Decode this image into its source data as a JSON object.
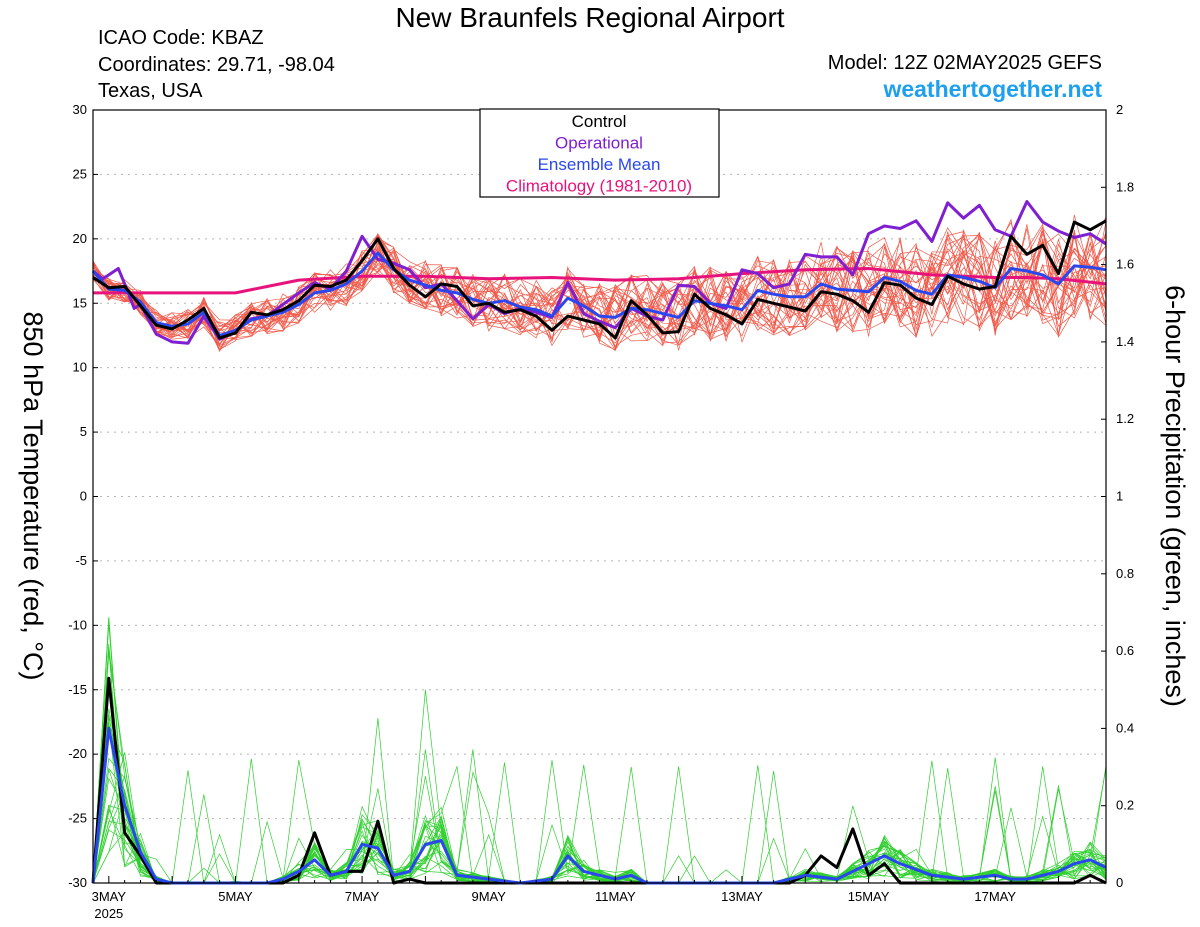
{
  "header": {
    "title": "New Braunfels Regional Airport",
    "icao": "ICAO Code: KBAZ",
    "coordinates": "Coordinates: 29.71, -98.04",
    "region": "Texas, USA",
    "model": "Model: 12Z 02MAY2025 GEFS",
    "site": "weathertogether.net"
  },
  "chart_data": {
    "type": "line",
    "y_left": {
      "label": "850 hPa Temperature (red, °C)",
      "range": [
        -30,
        30
      ],
      "ticks": [
        "-30",
        "-25",
        "-20",
        "-15",
        "-10",
        "-5",
        "0",
        "5",
        "10",
        "15",
        "20",
        "25",
        "30"
      ]
    },
    "y_right": {
      "label": "6-hour Precipitation (green, inches)",
      "range": [
        0,
        2
      ],
      "ticks": [
        "0",
        "0.2",
        "0.4",
        "0.6",
        "0.8",
        "1",
        "1.2",
        "1.4",
        "1.6",
        "1.8",
        "2"
      ]
    },
    "x": {
      "range_days": [
        2.75,
        18.75
      ],
      "tick_labels": [
        "3MAY",
        "5MAY",
        "7MAY",
        "9MAY",
        "11MAY",
        "13MAY",
        "15MAY",
        "17MAY"
      ],
      "tick_days": [
        3,
        5,
        7,
        9,
        11,
        13,
        15,
        17
      ],
      "year_label": "2025"
    },
    "grid": true,
    "legend": {
      "placement": "top-center",
      "entries": [
        {
          "name": "Control",
          "color": "#000000"
        },
        {
          "name": "Operational",
          "color": "#7f1fd0"
        },
        {
          "name": "Ensemble Mean",
          "color": "#2a47ee"
        },
        {
          "name": "Climatology (1981-2010)",
          "color": "#e8137a"
        }
      ]
    },
    "colors": {
      "members_temp": "#f05a4a",
      "members_precip": "#2fcf2f",
      "control": "#000000",
      "operational": "#7f1fd0",
      "ensemble_mean": "#2a47ee",
      "climatology": "#e8137a"
    },
    "series": [
      {
        "name": "Climatology (1981-2010)",
        "axis": "left",
        "x": [
          2.75,
          4.25,
          4.5,
          5,
          5.5,
          6,
          7,
          8,
          9,
          10,
          11,
          12,
          13,
          14,
          15,
          16,
          17,
          17.5,
          18,
          18.75
        ],
        "values": [
          15.8,
          15.8,
          15.8,
          15.8,
          16.3,
          16.8,
          17.1,
          17.1,
          16.9,
          17.0,
          16.8,
          16.9,
          17.3,
          17.6,
          17.7,
          17.2,
          17.0,
          17.0,
          16.9,
          16.5
        ]
      },
      {
        "name": "Operational",
        "axis": "left",
        "x": [
          2.75,
          2.9,
          3.0,
          3.15,
          3.25,
          3.4,
          3.5,
          3.75,
          4.0,
          4.25,
          4.5,
          4.75,
          5.0,
          5.25,
          5.5,
          5.75,
          6.0,
          6.25,
          6.5,
          6.75,
          7.0,
          7.25,
          7.5,
          7.75,
          8.0,
          8.25,
          8.5,
          8.75,
          9.0,
          9.25,
          9.5,
          9.75,
          10.0,
          10.25,
          10.5,
          10.75,
          11.0,
          11.25,
          11.5,
          11.75,
          12.0,
          12.25,
          12.5,
          12.75,
          13.0,
          13.25,
          13.5,
          13.75,
          14.0,
          14.25,
          14.5,
          14.75,
          15.0,
          15.25,
          15.5,
          15.75,
          16.0,
          16.25,
          16.5,
          16.75,
          17.0,
          17.25,
          17.5,
          17.75,
          18.0,
          18.25,
          18.5,
          18.75
        ],
        "values": [
          17.5,
          16.9,
          17.2,
          17.7,
          16.5,
          14.6,
          14.9,
          12.6,
          12.0,
          11.9,
          14.0,
          12.2,
          12.8,
          13.8,
          14.0,
          14.9,
          15.8,
          16.6,
          16.1,
          17.5,
          20.2,
          18.4,
          18.1,
          17.6,
          16.2,
          16.5,
          15.2,
          13.8,
          14.9,
          14.2,
          14.6,
          14.3,
          13.9,
          16.6,
          14.2,
          13.6,
          13.1,
          14.6,
          14.0,
          13.7,
          16.4,
          16.3,
          15.0,
          14.6,
          17.6,
          17.3,
          16.2,
          16.5,
          18.8,
          18.6,
          18.6,
          17.2,
          20.4,
          21.0,
          20.8,
          21.4,
          19.8,
          22.8,
          21.6,
          22.6,
          20.7,
          20.2,
          22.9,
          21.3,
          20.6,
          20.1,
          20.4,
          19.6
        ]
      },
      {
        "name": "Control",
        "axis": "left",
        "x": [
          2.75,
          3.0,
          3.25,
          3.5,
          3.75,
          4.0,
          4.25,
          4.5,
          4.75,
          5.0,
          5.25,
          5.5,
          5.75,
          6.0,
          6.25,
          6.5,
          6.75,
          7.0,
          7.25,
          7.5,
          7.75,
          8.0,
          8.25,
          8.5,
          8.75,
          9.0,
          9.25,
          9.5,
          9.75,
          10.0,
          10.25,
          10.5,
          10.75,
          11.0,
          11.25,
          11.5,
          11.75,
          12.0,
          12.25,
          12.5,
          12.75,
          13.0,
          13.25,
          13.5,
          13.75,
          14.0,
          14.25,
          14.5,
          14.75,
          15.0,
          15.25,
          15.5,
          15.75,
          16.0,
          16.25,
          16.5,
          16.75,
          17.0,
          17.25,
          17.5,
          17.75,
          18.0,
          18.25,
          18.5,
          18.75
        ],
        "values": [
          17.0,
          16.2,
          16.3,
          14.8,
          13.3,
          13.0,
          13.7,
          14.6,
          12.3,
          12.7,
          14.3,
          14.1,
          14.5,
          15.2,
          16.4,
          16.3,
          16.8,
          18.3,
          20.0,
          17.7,
          16.4,
          15.5,
          16.5,
          16.3,
          14.8,
          15.0,
          14.3,
          14.5,
          14.0,
          12.9,
          14.0,
          13.7,
          13.4,
          12.3,
          15.2,
          14.1,
          12.7,
          12.8,
          15.7,
          14.6,
          14.1,
          13.4,
          15.3,
          15.0,
          14.7,
          14.4,
          15.9,
          15.7,
          15.2,
          14.3,
          16.6,
          16.4,
          15.4,
          14.9,
          17.1,
          16.5,
          16.1,
          16.3,
          20.2,
          18.8,
          19.5,
          17.3,
          21.3,
          20.7,
          21.4
        ]
      },
      {
        "name": "Ensemble Mean",
        "axis": "left",
        "x": [
          2.75,
          3.0,
          3.25,
          3.5,
          3.75,
          4.0,
          4.25,
          4.5,
          4.75,
          5.0,
          5.25,
          5.5,
          5.75,
          6.0,
          6.25,
          6.5,
          6.75,
          7.0,
          7.25,
          7.5,
          7.75,
          8.0,
          8.25,
          8.5,
          8.75,
          9.0,
          9.25,
          9.5,
          9.75,
          10.0,
          10.25,
          10.5,
          10.75,
          11.0,
          11.25,
          11.5,
          11.75,
          12.0,
          12.25,
          12.5,
          12.75,
          13.0,
          13.25,
          13.5,
          13.75,
          14.0,
          14.25,
          14.5,
          14.75,
          15.0,
          15.25,
          15.5,
          15.75,
          16.0,
          16.25,
          16.5,
          16.75,
          17.0,
          17.25,
          17.5,
          17.75,
          18.0,
          18.25,
          18.5,
          18.75
        ],
        "values": [
          17.5,
          16.1,
          16.0,
          15.1,
          13.5,
          13.2,
          13.4,
          14.3,
          12.5,
          12.9,
          13.7,
          14.0,
          14.3,
          14.9,
          15.8,
          16.0,
          16.5,
          17.5,
          18.9,
          17.6,
          16.8,
          16.4,
          16.0,
          15.8,
          15.3,
          15.0,
          15.2,
          14.7,
          14.5,
          14.0,
          15.4,
          14.8,
          14.0,
          13.9,
          14.6,
          14.5,
          14.2,
          13.9,
          15.2,
          15.0,
          14.8,
          14.5,
          16.0,
          15.7,
          15.5,
          15.5,
          16.5,
          16.1,
          16.0,
          15.9,
          17.0,
          16.7,
          16.0,
          15.7,
          17.2,
          17.0,
          16.7,
          16.2,
          17.7,
          17.5,
          17.2,
          16.5,
          17.9,
          17.8,
          17.6
        ]
      },
      {
        "name": "Control",
        "axis": "right",
        "x": [
          2.75,
          3.0,
          3.25,
          3.5,
          3.75,
          4.0,
          4.5,
          5.0,
          5.5,
          5.75,
          6.0,
          6.25,
          6.5,
          6.75,
          7.0,
          7.25,
          7.5,
          7.75,
          8.0,
          8.5,
          9.0,
          9.5,
          10,
          11,
          12,
          13,
          13.5,
          13.75,
          14.0,
          14.25,
          14.5,
          14.75,
          15.0,
          15.25,
          15.5,
          16,
          17,
          17.5,
          17.75,
          18.0,
          18.25,
          18.5,
          18.75
        ],
        "values": [
          0,
          0.53,
          0.13,
          0.07,
          0,
          0,
          0,
          0,
          0,
          0,
          0.02,
          0.13,
          0.02,
          0.03,
          0.03,
          0.16,
          0,
          0.01,
          0,
          0,
          0,
          0,
          0,
          0,
          0,
          0,
          0,
          0,
          0.02,
          0.07,
          0.04,
          0.14,
          0.02,
          0.05,
          0,
          0,
          0,
          0,
          0,
          0,
          0,
          0.02,
          0
        ]
      },
      {
        "name": "Ensemble Mean",
        "axis": "right",
        "x": [
          2.75,
          3.0,
          3.25,
          3.5,
          3.75,
          4.0,
          4.5,
          5.0,
          5.5,
          5.75,
          6.0,
          6.25,
          6.5,
          6.75,
          7.0,
          7.25,
          7.5,
          7.75,
          8.0,
          8.25,
          8.5,
          9.0,
          9.5,
          10.0,
          10.25,
          10.5,
          10.75,
          11.0,
          11.25,
          11.5,
          12.0,
          12.5,
          13.0,
          13.5,
          14.0,
          14.5,
          15.0,
          15.25,
          15.5,
          16.0,
          16.5,
          17.0,
          17.25,
          17.5,
          17.75,
          18.0,
          18.25,
          18.5,
          18.75
        ],
        "values": [
          0,
          0.4,
          0.2,
          0.08,
          0.01,
          0,
          0,
          0,
          0,
          0.01,
          0.03,
          0.06,
          0.02,
          0.03,
          0.1,
          0.09,
          0.02,
          0.03,
          0.1,
          0.11,
          0.02,
          0.01,
          0,
          0.01,
          0.07,
          0.03,
          0.02,
          0.01,
          0.02,
          0,
          0,
          0,
          0,
          0,
          0.02,
          0.01,
          0.05,
          0.07,
          0.05,
          0.02,
          0.01,
          0.02,
          0.01,
          0.01,
          0.02,
          0.03,
          0.05,
          0.06,
          0.04
        ]
      }
    ]
  }
}
